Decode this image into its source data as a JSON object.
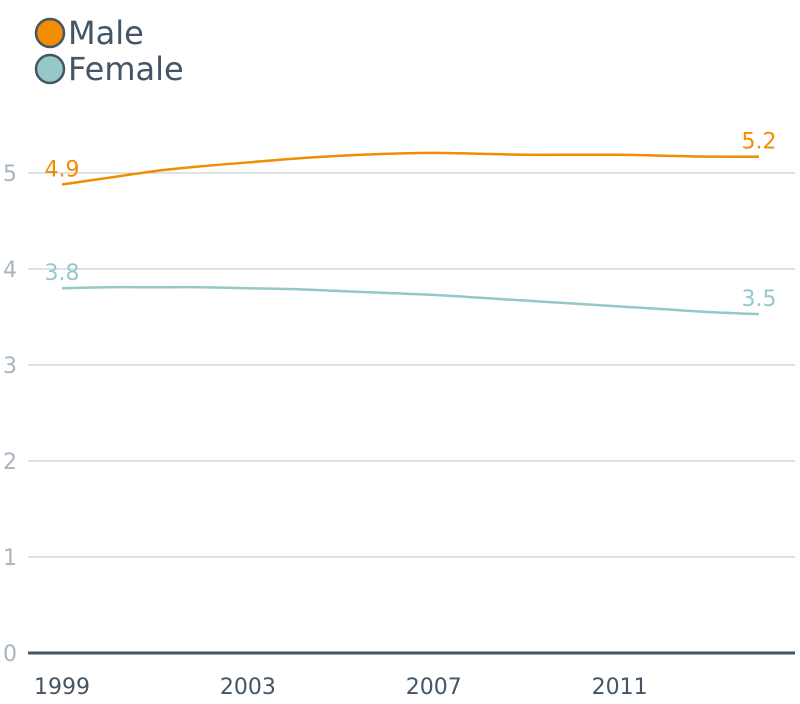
{
  "chart_data": {
    "type": "line",
    "title": "",
    "xlabel": "",
    "ylabel": "",
    "xlim": [
      1999,
      2014
    ],
    "ylim": [
      0,
      5
    ],
    "x_ticks": [
      "1999",
      "2003",
      "2007",
      "2011"
    ],
    "y_ticks": [
      "0",
      "1",
      "2",
      "3",
      "4",
      "5"
    ],
    "grid": true,
    "legend_position": "top-left",
    "series": [
      {
        "name": "Male",
        "color": "#F28C00",
        "x": [
          1999,
          2000,
          2001,
          2002,
          2003,
          2004,
          2005,
          2006,
          2007,
          2008,
          2009,
          2010,
          2011,
          2012,
          2013,
          2014
        ],
        "values": [
          4.88,
          4.95,
          5.02,
          5.07,
          5.11,
          5.15,
          5.18,
          5.2,
          5.21,
          5.2,
          5.19,
          5.19,
          5.19,
          5.18,
          5.17,
          5.17
        ],
        "start_label": "4.9",
        "end_label": "5.2"
      },
      {
        "name": "Female",
        "color": "#96C8C8",
        "x": [
          1999,
          2000,
          2001,
          2002,
          2003,
          2004,
          2005,
          2006,
          2007,
          2008,
          2009,
          2010,
          2011,
          2012,
          2013,
          2014
        ],
        "values": [
          3.8,
          3.81,
          3.81,
          3.81,
          3.8,
          3.79,
          3.77,
          3.75,
          3.73,
          3.7,
          3.67,
          3.64,
          3.61,
          3.58,
          3.55,
          3.53
        ],
        "start_label": "3.8",
        "end_label": "3.5"
      }
    ]
  },
  "style": {
    "grid_color": "#B8C4CE",
    "baseline_color": "#445566",
    "y_tick_color": "#A9B4C0",
    "x_tick_color": "#445566",
    "legend_text_color": "#445566",
    "legend_marker_border": "#445566"
  }
}
